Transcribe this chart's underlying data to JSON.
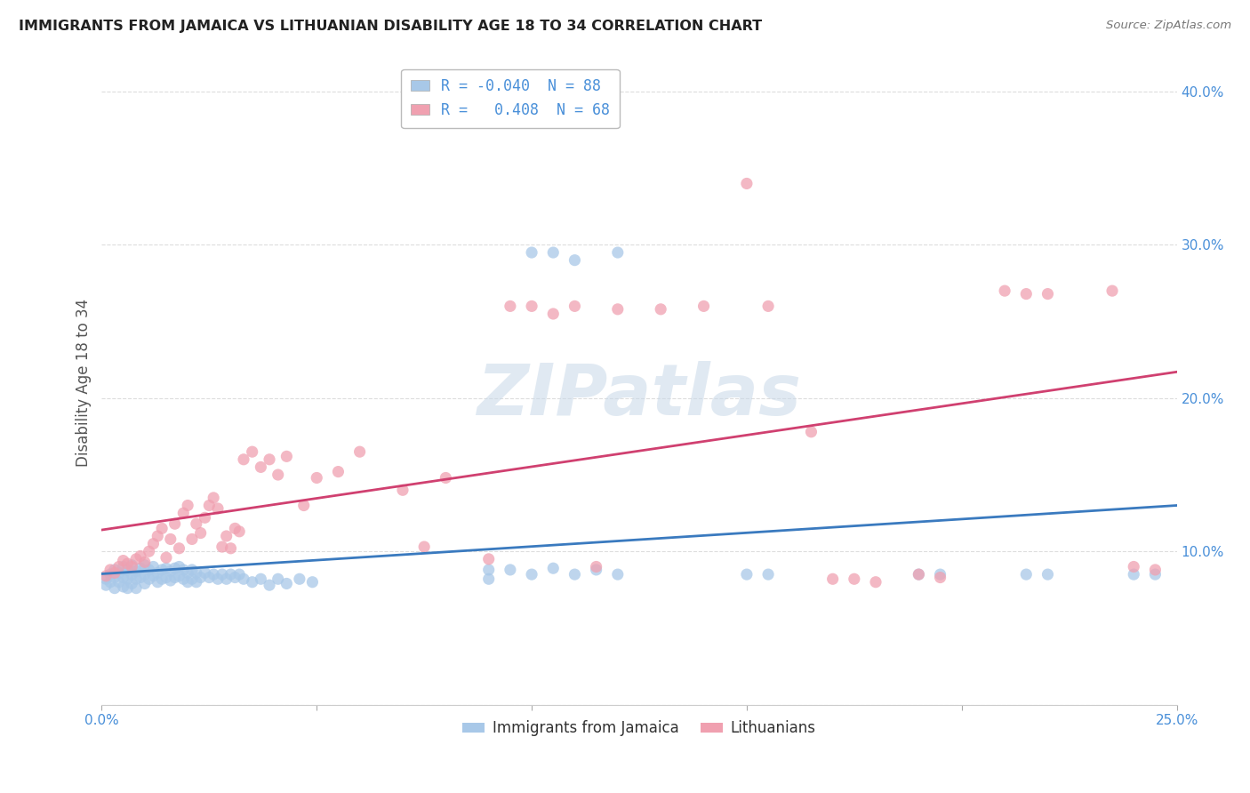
{
  "title": "IMMIGRANTS FROM JAMAICA VS LITHUANIAN DISABILITY AGE 18 TO 34 CORRELATION CHART",
  "source": "Source: ZipAtlas.com",
  "ylabel": "Disability Age 18 to 34",
  "xlim": [
    0.0,
    0.25
  ],
  "ylim": [
    0.0,
    0.42
  ],
  "xtick_positions": [
    0.0,
    0.05,
    0.1,
    0.15,
    0.2,
    0.25
  ],
  "xtick_labels": [
    "0.0%",
    "",
    "",
    "",
    "",
    "25.0%"
  ],
  "ytick_positions": [
    0.0,
    0.1,
    0.2,
    0.3,
    0.4
  ],
  "ytick_labels": [
    "",
    "10.0%",
    "20.0%",
    "30.0%",
    "40.0%"
  ],
  "jamaica_color": "#a8c8e8",
  "lithuania_color": "#f0a0b0",
  "jamaica_line_color": "#3a7abf",
  "lithuania_line_color": "#d04070",
  "watermark_text": "ZIPatlas",
  "background_color": "#ffffff",
  "grid_color": "#dddddd",
  "legend_box_label1": "R = -0.040  N = 88",
  "legend_box_label2": "R =   0.408  N = 68",
  "bottom_legend_label1": "Immigrants from Jamaica",
  "bottom_legend_label2": "Lithuanians",
  "jamaica_scatter_x": [
    0.001,
    0.001,
    0.002,
    0.002,
    0.003,
    0.003,
    0.003,
    0.004,
    0.004,
    0.005,
    0.005,
    0.005,
    0.006,
    0.006,
    0.006,
    0.007,
    0.007,
    0.007,
    0.008,
    0.008,
    0.008,
    0.009,
    0.009,
    0.01,
    0.01,
    0.01,
    0.011,
    0.011,
    0.012,
    0.012,
    0.013,
    0.013,
    0.014,
    0.014,
    0.015,
    0.015,
    0.016,
    0.016,
    0.017,
    0.017,
    0.018,
    0.018,
    0.019,
    0.019,
    0.02,
    0.02,
    0.021,
    0.021,
    0.022,
    0.022,
    0.023,
    0.024,
    0.025,
    0.026,
    0.027,
    0.028,
    0.029,
    0.03,
    0.031,
    0.032,
    0.033,
    0.035,
    0.037,
    0.039,
    0.041,
    0.043,
    0.046,
    0.049,
    0.09,
    0.09,
    0.095,
    0.1,
    0.105,
    0.11,
    0.115,
    0.12,
    0.15,
    0.155,
    0.19,
    0.195,
    0.215,
    0.22,
    0.24,
    0.245,
    0.1,
    0.105,
    0.11,
    0.12
  ],
  "jamaica_scatter_y": [
    0.082,
    0.078,
    0.085,
    0.08,
    0.088,
    0.083,
    0.076,
    0.086,
    0.08,
    0.09,
    0.083,
    0.077,
    0.088,
    0.082,
    0.076,
    0.091,
    0.085,
    0.079,
    0.087,
    0.082,
    0.076,
    0.089,
    0.083,
    0.091,
    0.085,
    0.079,
    0.088,
    0.082,
    0.09,
    0.084,
    0.086,
    0.08,
    0.088,
    0.082,
    0.089,
    0.083,
    0.087,
    0.081,
    0.089,
    0.083,
    0.09,
    0.084,
    0.088,
    0.082,
    0.086,
    0.08,
    0.088,
    0.082,
    0.086,
    0.08,
    0.083,
    0.086,
    0.083,
    0.085,
    0.082,
    0.085,
    0.082,
    0.085,
    0.083,
    0.085,
    0.082,
    0.08,
    0.082,
    0.078,
    0.082,
    0.079,
    0.082,
    0.08,
    0.088,
    0.082,
    0.088,
    0.085,
    0.089,
    0.085,
    0.088,
    0.085,
    0.085,
    0.085,
    0.085,
    0.085,
    0.085,
    0.085,
    0.085,
    0.085,
    0.295,
    0.295,
    0.29,
    0.295
  ],
  "lithuania_scatter_x": [
    0.001,
    0.002,
    0.003,
    0.004,
    0.005,
    0.006,
    0.007,
    0.008,
    0.009,
    0.01,
    0.011,
    0.012,
    0.013,
    0.014,
    0.015,
    0.016,
    0.017,
    0.018,
    0.019,
    0.02,
    0.021,
    0.022,
    0.023,
    0.024,
    0.025,
    0.026,
    0.027,
    0.028,
    0.029,
    0.03,
    0.031,
    0.032,
    0.033,
    0.035,
    0.037,
    0.039,
    0.041,
    0.043,
    0.047,
    0.05,
    0.055,
    0.06,
    0.07,
    0.075,
    0.08,
    0.09,
    0.095,
    0.1,
    0.105,
    0.11,
    0.115,
    0.12,
    0.13,
    0.14,
    0.15,
    0.155,
    0.165,
    0.17,
    0.175,
    0.18,
    0.19,
    0.195,
    0.21,
    0.215,
    0.22,
    0.235,
    0.24,
    0.245
  ],
  "lithuania_scatter_y": [
    0.084,
    0.088,
    0.086,
    0.09,
    0.094,
    0.092,
    0.09,
    0.095,
    0.097,
    0.093,
    0.1,
    0.105,
    0.11,
    0.115,
    0.096,
    0.108,
    0.118,
    0.102,
    0.125,
    0.13,
    0.108,
    0.118,
    0.112,
    0.122,
    0.13,
    0.135,
    0.128,
    0.103,
    0.11,
    0.102,
    0.115,
    0.113,
    0.16,
    0.165,
    0.155,
    0.16,
    0.15,
    0.162,
    0.13,
    0.148,
    0.152,
    0.165,
    0.14,
    0.103,
    0.148,
    0.095,
    0.26,
    0.26,
    0.255,
    0.26,
    0.09,
    0.258,
    0.258,
    0.26,
    0.34,
    0.26,
    0.178,
    0.082,
    0.082,
    0.08,
    0.085,
    0.083,
    0.27,
    0.268,
    0.268,
    0.27,
    0.09,
    0.088
  ]
}
